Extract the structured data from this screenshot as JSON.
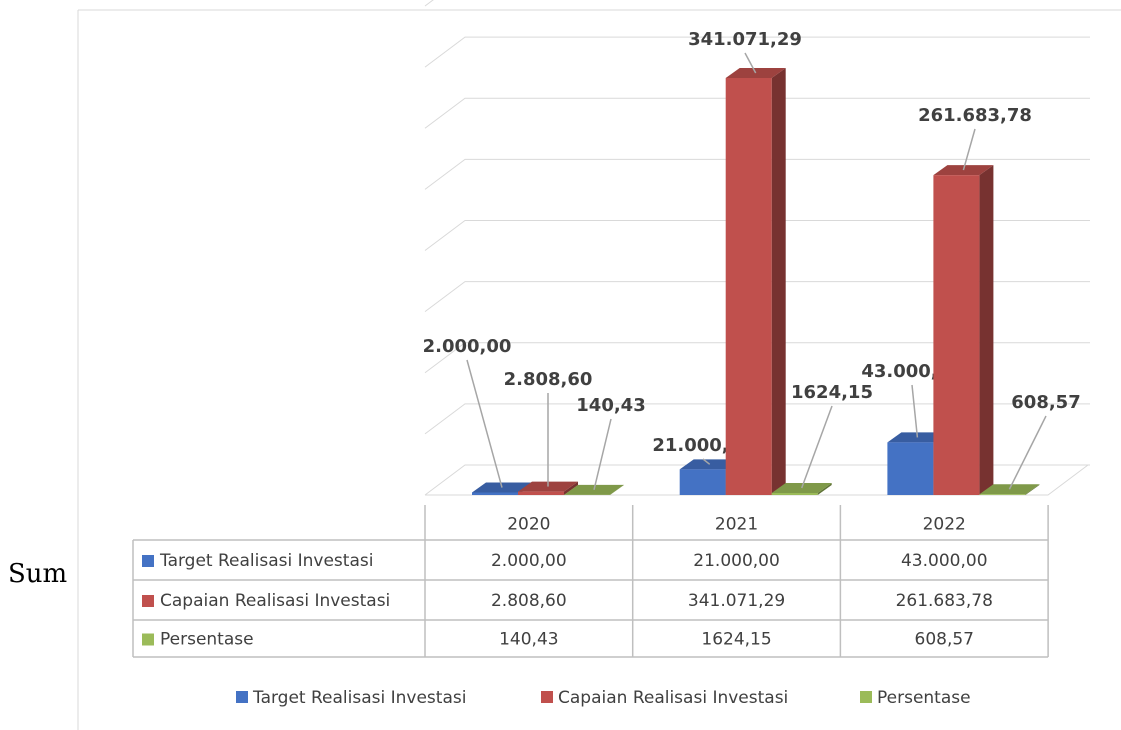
{
  "fragment_text": "Sum",
  "chart_data": {
    "type": "bar3d",
    "categories": [
      "2020",
      "2021",
      "2022"
    ],
    "series": [
      {
        "name": "Target Realisasi Investasi",
        "color": "#4472c4",
        "values": [
          2000,
          21000,
          43000
        ],
        "value_labels": [
          "2.000,00",
          "21.000,00",
          "43.000,00"
        ]
      },
      {
        "name": "Capaian Realisasi Investasi",
        "color": "#c0504d",
        "values": [
          2808.6,
          341071.29,
          261683.78
        ],
        "value_labels": [
          "2.808,60",
          "341.071,29",
          "261.683,78"
        ]
      },
      {
        "name": "Persentase",
        "color": "#9bbb59",
        "values": [
          140.43,
          1624.15,
          608.57
        ],
        "value_labels": [
          "140,43",
          "1624,15",
          "608,57"
        ]
      }
    ],
    "ylim": [
      0,
      400000
    ],
    "yticks": [
      0,
      50000,
      100000,
      150000,
      200000,
      250000,
      300000,
      350000,
      400000
    ],
    "grid": true,
    "legend": "bottom",
    "data_table": true
  }
}
